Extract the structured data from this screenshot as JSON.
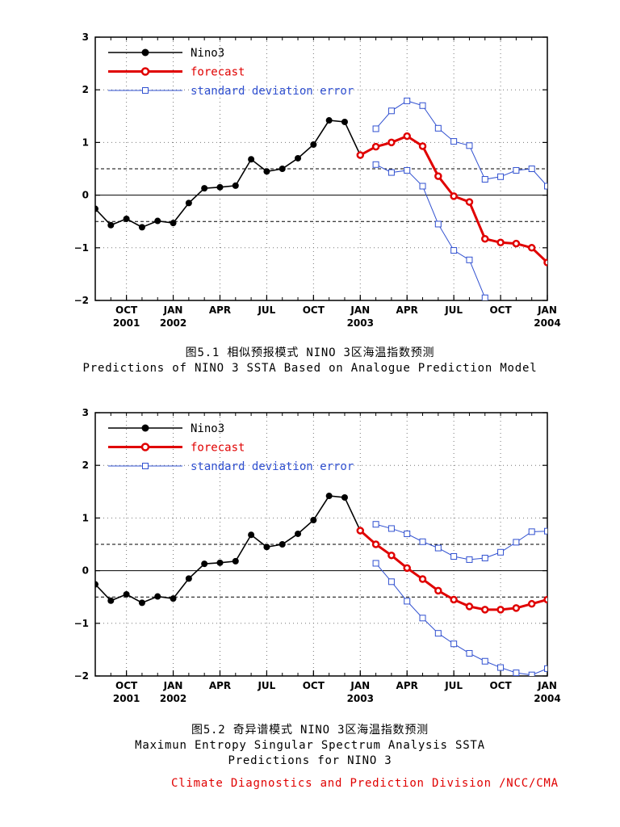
{
  "colors": {
    "nino3": "#000000",
    "forecast": "#e00000",
    "sde": "#3050d0",
    "footer": "#e00000"
  },
  "chart_data": [
    {
      "type": "line",
      "ylim": [
        -2,
        3
      ],
      "yticks": [
        "3",
        "2",
        "1",
        "0",
        "−1",
        "−2"
      ],
      "x_range": [
        0,
        29
      ],
      "xticks": [
        {
          "x": 2,
          "label": "OCT",
          "year": "2001"
        },
        {
          "x": 5,
          "label": "JAN",
          "year": "2002"
        },
        {
          "x": 8,
          "label": "APR",
          "year": ""
        },
        {
          "x": 11,
          "label": "JUL",
          "year": ""
        },
        {
          "x": 14,
          "label": "OCT",
          "year": ""
        },
        {
          "x": 17,
          "label": "JAN",
          "year": "2003"
        },
        {
          "x": 20,
          "label": "APR",
          "year": ""
        },
        {
          "x": 23,
          "label": "JUL",
          "year": ""
        },
        {
          "x": 26,
          "label": "OCT",
          "year": ""
        },
        {
          "x": 29,
          "label": "JAN",
          "year": "2004"
        }
      ],
      "hlines": [
        0.5,
        -0.5
      ],
      "legend": [
        "Nino3",
        "forecast",
        "standard deviation error"
      ],
      "series": [
        {
          "name": "Nino3",
          "x0": 0,
          "values": [
            -0.26,
            -0.57,
            -0.45,
            -0.61,
            -0.49,
            -0.53,
            -0.15,
            0.13,
            0.15,
            0.18,
            0.68,
            0.45,
            0.5,
            0.7,
            0.96,
            1.42,
            1.39,
            0.76
          ]
        },
        {
          "name": "forecast",
          "x0": 17,
          "values": [
            0.76,
            0.92,
            1.0,
            1.12,
            0.93,
            0.36,
            -0.02,
            -0.13,
            -0.83,
            -0.9,
            -0.92,
            -1.0,
            -1.28
          ]
        },
        {
          "name": "standard deviation error",
          "x0": 18,
          "values": [
            1.26,
            1.6,
            1.79,
            1.7,
            1.27,
            1.02,
            0.94,
            0.3,
            0.35,
            0.47,
            0.5,
            0.17
          ]
        },
        {
          "name": "standard deviation error",
          "x0": 18,
          "values": [
            0.58,
            0.43,
            0.47,
            0.17,
            -0.55,
            -1.05,
            -1.23,
            -1.95
          ]
        }
      ],
      "caption_cn": "图5.1 相似预报模式 NINO 3区海温指数预测",
      "caption_en": "Predictions of NINO 3 SSTA Based on Analogue Prediction Model"
    },
    {
      "type": "line",
      "ylim": [
        -2,
        3
      ],
      "yticks": [
        "3",
        "2",
        "1",
        "0",
        "−1",
        "−2"
      ],
      "x_range": [
        0,
        29
      ],
      "xticks": [
        {
          "x": 2,
          "label": "OCT",
          "year": "2001"
        },
        {
          "x": 5,
          "label": "JAN",
          "year": "2002"
        },
        {
          "x": 8,
          "label": "APR",
          "year": ""
        },
        {
          "x": 11,
          "label": "JUL",
          "year": ""
        },
        {
          "x": 14,
          "label": "OCT",
          "year": ""
        },
        {
          "x": 17,
          "label": "JAN",
          "year": "2003"
        },
        {
          "x": 20,
          "label": "APR",
          "year": ""
        },
        {
          "x": 23,
          "label": "JUL",
          "year": ""
        },
        {
          "x": 26,
          "label": "OCT",
          "year": ""
        },
        {
          "x": 29,
          "label": "JAN",
          "year": "2004"
        }
      ],
      "hlines": [
        0.5,
        -0.5
      ],
      "legend": [
        "Nino3",
        "forecast",
        "standard deviation error"
      ],
      "series": [
        {
          "name": "Nino3",
          "x0": 0,
          "values": [
            -0.26,
            -0.57,
            -0.45,
            -0.61,
            -0.49,
            -0.53,
            -0.15,
            0.13,
            0.15,
            0.18,
            0.68,
            0.45,
            0.5,
            0.7,
            0.96,
            1.42,
            1.39,
            0.76
          ]
        },
        {
          "name": "forecast",
          "x0": 17,
          "values": [
            0.76,
            0.5,
            0.29,
            0.05,
            -0.16,
            -0.38,
            -0.55,
            -0.68,
            -0.74,
            -0.74,
            -0.71,
            -0.63,
            -0.55
          ]
        },
        {
          "name": "standard deviation error",
          "x0": 18,
          "values": [
            0.88,
            0.8,
            0.7,
            0.55,
            0.43,
            0.27,
            0.21,
            0.24,
            0.35,
            0.54,
            0.74,
            0.75
          ]
        },
        {
          "name": "standard deviation error",
          "x0": 18,
          "values": [
            0.14,
            -0.21,
            -0.58,
            -0.9,
            -1.19,
            -1.39,
            -1.57,
            -1.72,
            -1.84,
            -1.94,
            -1.98,
            -1.86
          ]
        }
      ],
      "caption_cn": "图5.2 奇异谱模式 NINO 3区海温指数预测",
      "caption_en": "Maximun Entropy Singular Spectrum Analysis SSTA",
      "caption_en2": "Predictions for NINO 3"
    }
  ],
  "footer": "Climate Diagnostics and Prediction Division /NCC/CMA"
}
